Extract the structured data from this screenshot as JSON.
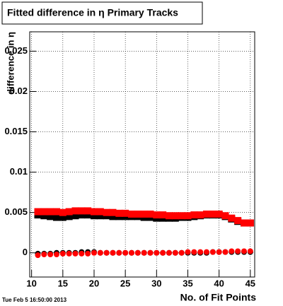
{
  "chart_data": {
    "type": "scatter",
    "title": "Fitted difference in  η Primary Tracks",
    "x_label": "No. of Fit Points",
    "y_label": "difference in η",
    "timestamp": "Tue Feb  5 16:50:00 2013",
    "x": [
      11,
      12,
      13,
      14,
      15,
      16,
      17,
      18,
      19,
      20,
      21,
      22,
      23,
      24,
      25,
      26,
      27,
      28,
      29,
      30,
      31,
      32,
      33,
      34,
      35,
      36,
      37,
      38,
      39,
      40,
      41,
      42,
      43,
      44,
      45
    ],
    "series": [
      {
        "marker": "square",
        "color": "#000000",
        "values": [
          0.0047,
          0.0046,
          0.0045,
          0.0044,
          0.0044,
          0.0045,
          0.0046,
          0.0047,
          0.0047,
          0.0046,
          0.0046,
          0.0046,
          0.0045,
          0.0045,
          0.0045,
          0.0045,
          0.0045,
          0.0044,
          0.0044,
          0.0043,
          0.0043,
          0.0043,
          0.0043,
          0.0044,
          0.0044,
          0.0045,
          0.0046,
          0.0047,
          0.0047,
          0.0047,
          0.0045,
          0.0042,
          0.0039,
          0.0037,
          0.0037
        ]
      },
      {
        "marker": "circle",
        "color": "#000000",
        "values": [
          -0.0001,
          -0.0001,
          -0.0001,
          0,
          0,
          0,
          0,
          0.0001,
          0.0001,
          0.0001,
          0,
          0,
          0,
          0,
          0,
          0,
          0,
          0,
          0,
          0,
          0,
          0,
          0,
          0,
          0,
          0,
          0,
          0,
          0.0001,
          0.0001,
          0.0001,
          0.0001,
          0.0001,
          0.0001,
          0.0001
        ]
      },
      {
        "marker": "square",
        "color": "#ff0000",
        "values": [
          0.0051,
          0.0051,
          0.0051,
          0.0051,
          0.005,
          0.0051,
          0.0052,
          0.0052,
          0.0052,
          0.0051,
          0.0051,
          0.005,
          0.005,
          0.0049,
          0.0049,
          0.0048,
          0.0048,
          0.0048,
          0.0048,
          0.0047,
          0.0047,
          0.0046,
          0.0046,
          0.0046,
          0.0046,
          0.0047,
          0.0047,
          0.0048,
          0.0048,
          0.0048,
          0.0046,
          0.0043,
          0.004,
          0.0037,
          0.0037
        ]
      },
      {
        "marker": "circle",
        "color": "#ff0000",
        "values": [
          -0.0003,
          -0.0002,
          -0.0002,
          -0.0002,
          -0.0001,
          -0.0001,
          -0.0001,
          -0.0001,
          -0.0001,
          0,
          0,
          0,
          0,
          0,
          0,
          0,
          0,
          0,
          0,
          0,
          0,
          0,
          0,
          0,
          0.0001,
          0.0001,
          0.0001,
          0.0001,
          0.0001,
          0.0001,
          0.0001,
          0.0002,
          0.0002,
          0.0002,
          0.0002
        ]
      }
    ],
    "xlim": [
      9.7,
      45.7
    ],
    "xticks": [
      10,
      15,
      20,
      25,
      30,
      35,
      40,
      45
    ],
    "ylim": [
      -0.003,
      0.0274
    ],
    "yticks": [
      0,
      0.005,
      0.01,
      0.015,
      0.02,
      0.025
    ],
    "grid": true
  }
}
